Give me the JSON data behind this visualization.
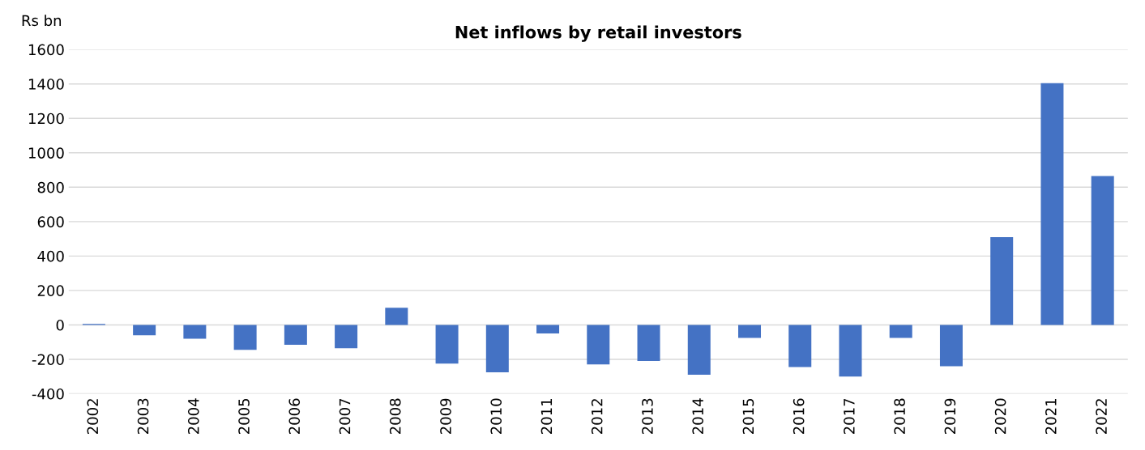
{
  "chart_data": {
    "type": "bar",
    "title": "Net inflows by retail investors",
    "ylabel": "Rs bn",
    "categories": [
      "2002",
      "2003",
      "2004",
      "2005",
      "2006",
      "2007",
      "2008",
      "2009",
      "2010",
      "2011",
      "2012",
      "2013",
      "2014",
      "2015",
      "2016",
      "2017",
      "2018",
      "2019",
      "2020",
      "2021",
      "2022"
    ],
    "values": [
      5,
      -60,
      -80,
      -145,
      -115,
      -135,
      100,
      -225,
      -275,
      -50,
      -230,
      -210,
      -290,
      -75,
      -245,
      -300,
      -75,
      -240,
      510,
      1405,
      865
    ],
    "color": "#4472c4",
    "ylim": [
      -400,
      1600
    ],
    "yticks": [
      -400,
      -200,
      0,
      200,
      400,
      600,
      800,
      1000,
      1200,
      1400,
      1600
    ],
    "grid": "y",
    "legend": false
  }
}
